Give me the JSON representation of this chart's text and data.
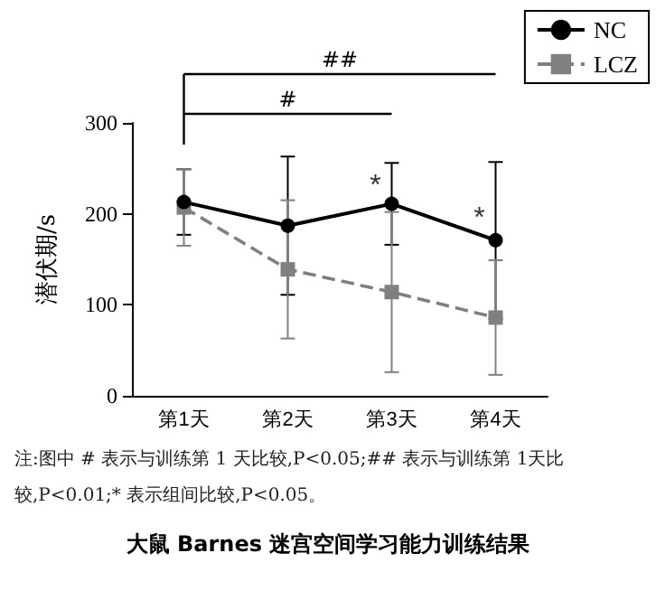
{
  "chart_data": {
    "type": "line",
    "title": "大鼠 Barnes 迷宫空间学习能力训练结果",
    "ylabel": "潜伏期/s",
    "categories": [
      "第1天",
      "第2天",
      "第3天",
      "第4天"
    ],
    "series": [
      {
        "name": "NC",
        "color": "#000000",
        "values": [
          213,
          187,
          211,
          171
        ],
        "errors": [
          36,
          76,
          45,
          86
        ],
        "marker": "circle",
        "line_style": "solid"
      },
      {
        "name": "LCZ",
        "color": "#808080",
        "values": [
          207,
          139,
          114,
          86
        ],
        "errors": [
          42,
          76,
          88,
          63
        ],
        "marker": "square",
        "line_style": "dashed"
      }
    ],
    "ylim": [
      0,
      300
    ],
    "yticks": [
      0,
      100,
      200,
      300
    ],
    "grid": false,
    "legend": "top right",
    "annotations": [
      "##",
      "#",
      {
        "text": "*",
        "x": "第3天",
        "y": 230
      },
      {
        "text": "*",
        "x": "第4天",
        "y": 195
      },
      "注:图中 # 表示与训练第 1 天比较,P<0.05;## 表示与训练第 1天比较,P<0.01;* 表示组间比较,P<0.05。"
    ]
  }
}
